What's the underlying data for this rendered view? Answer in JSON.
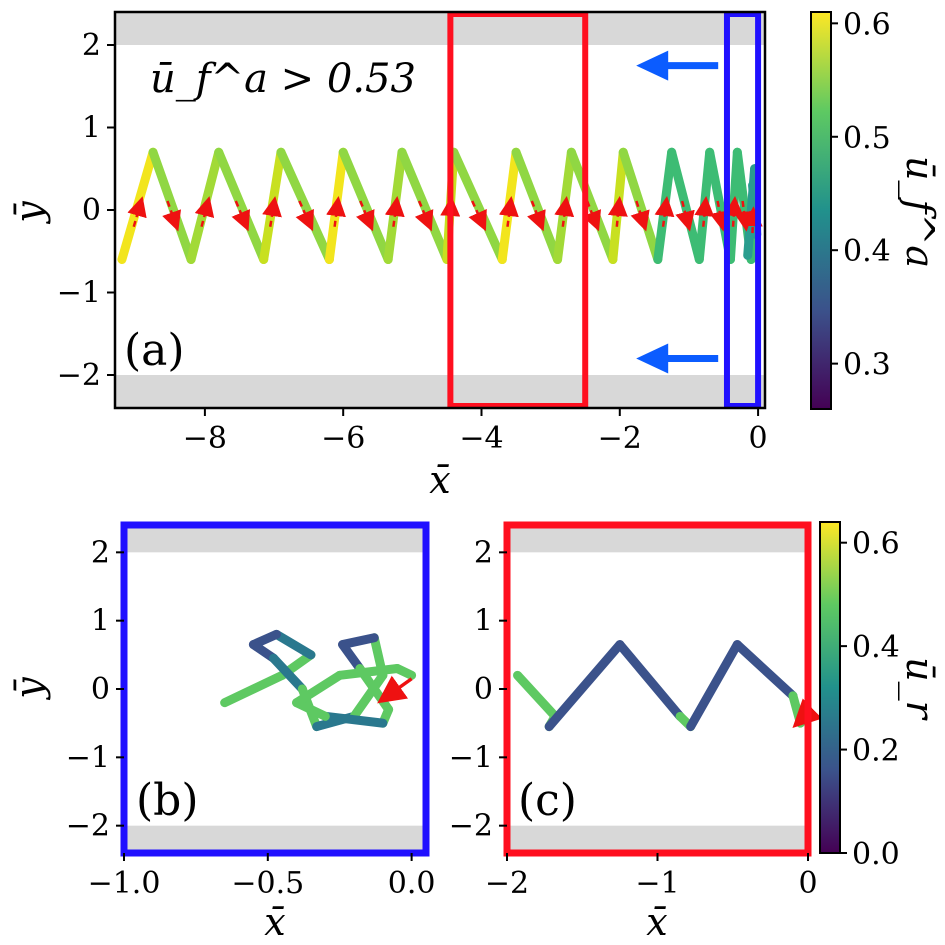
{
  "chart_data": [
    {
      "panel": "(a)",
      "type": "line",
      "xlabel": "x̄",
      "ylabel": "ȳ",
      "xlim": [
        -9.3,
        0.1
      ],
      "ylim": [
        -2.4,
        2.4
      ],
      "xticks": [
        "−8",
        "−6",
        "−4",
        "−2",
        "0"
      ],
      "xtick_values": [
        -8,
        -6,
        -4,
        -2,
        0
      ],
      "yticks": [
        "2",
        "1",
        "0",
        "−1",
        "−2"
      ],
      "ytick_values": [
        2,
        1,
        0,
        -1,
        -2
      ],
      "annotation": "ū_f^a > 0.53",
      "wall_bands": [
        [
          2.0,
          2.4
        ],
        [
          -2.4,
          -2.0
        ]
      ],
      "zigzag_turning_points": [
        {
          "x": -9.2,
          "y": -0.6
        },
        {
          "x": -8.75,
          "y": 0.7
        },
        {
          "x": -8.2,
          "y": -0.6
        },
        {
          "x": -7.8,
          "y": 0.7
        },
        {
          "x": -7.15,
          "y": -0.6
        },
        {
          "x": -6.9,
          "y": 0.7
        },
        {
          "x": -6.2,
          "y": -0.6
        },
        {
          "x": -6.0,
          "y": 0.7
        },
        {
          "x": -5.35,
          "y": -0.6
        },
        {
          "x": -5.15,
          "y": 0.7
        },
        {
          "x": -4.5,
          "y": -0.6
        },
        {
          "x": -4.4,
          "y": 0.7
        },
        {
          "x": -3.7,
          "y": -0.6
        },
        {
          "x": -3.5,
          "y": 0.7
        },
        {
          "x": -2.9,
          "y": -0.6
        },
        {
          "x": -2.7,
          "y": 0.7
        },
        {
          "x": -2.1,
          "y": -0.6
        },
        {
          "x": -1.95,
          "y": 0.7
        },
        {
          "x": -1.45,
          "y": -0.6
        },
        {
          "x": -1.25,
          "y": 0.7
        },
        {
          "x": -0.85,
          "y": -0.6
        },
        {
          "x": -0.7,
          "y": 0.7
        },
        {
          "x": -0.4,
          "y": -0.6
        },
        {
          "x": -0.3,
          "y": 0.7
        },
        {
          "x": -0.1,
          "y": -0.6
        },
        {
          "x": -0.05,
          "y": 0.5
        }
      ],
      "highlight_boxes": [
        {
          "color": "#ff0f1f",
          "x_range": [
            -4.45,
            -2.5
          ],
          "y_range": [
            -2.4,
            2.4
          ]
        },
        {
          "color": "#2010ff",
          "x_range": [
            -0.45,
            0.0
          ],
          "y_range": [
            -2.4,
            2.4
          ]
        }
      ],
      "flow_arrows": [
        {
          "x": -1.3,
          "y": 1.75
        },
        {
          "x": -1.3,
          "y": -1.8
        }
      ],
      "colorbar": {
        "ticks": [
          "0.6",
          "0.5",
          "0.4",
          "0.3"
        ],
        "tick_values": [
          0.6,
          0.5,
          0.4,
          0.3
        ],
        "range": [
          0.26,
          0.61
        ],
        "label": "ū_f^a"
      }
    },
    {
      "panel": "(b)",
      "type": "line",
      "xlabel": "x̄",
      "ylabel": "ȳ",
      "xlim": [
        -1.0,
        0.05
      ],
      "ylim": [
        -2.4,
        2.4
      ],
      "xticks": [
        "−1.0",
        "−0.5",
        "0.0"
      ],
      "xtick_values": [
        -1.0,
        -0.5,
        0.0
      ],
      "yticks": [
        "2",
        "1",
        "0",
        "−1",
        "−2"
      ],
      "ytick_values": [
        2,
        1,
        0,
        -1,
        -2
      ],
      "wall_bands": [
        [
          2.0,
          2.4
        ],
        [
          -2.4,
          -2.0
        ]
      ],
      "frame_color": "#2010ff"
    },
    {
      "panel": "(c)",
      "type": "line",
      "xlabel": "x̄",
      "ylabel": "",
      "xlim": [
        -2.0,
        0.0
      ],
      "ylim": [
        -2.4,
        2.4
      ],
      "xticks": [
        "−2",
        "−1",
        "0"
      ],
      "xtick_values": [
        -2,
        -1,
        0
      ],
      "yticks": [
        "2",
        "1",
        "0",
        "−1",
        "−2"
      ],
      "ytick_values": [
        2,
        1,
        0,
        -1,
        -2
      ],
      "wall_bands": [
        [
          2.0,
          2.4
        ],
        [
          -2.4,
          -2.0
        ]
      ],
      "frame_color": "#ff0f1f",
      "colorbar": {
        "ticks": [
          "0.6",
          "0.4",
          "0.2",
          "0.0"
        ],
        "tick_values": [
          0.6,
          0.4,
          0.2,
          0.0
        ],
        "range": [
          0.0,
          0.64
        ],
        "label": "ū_r"
      }
    }
  ]
}
